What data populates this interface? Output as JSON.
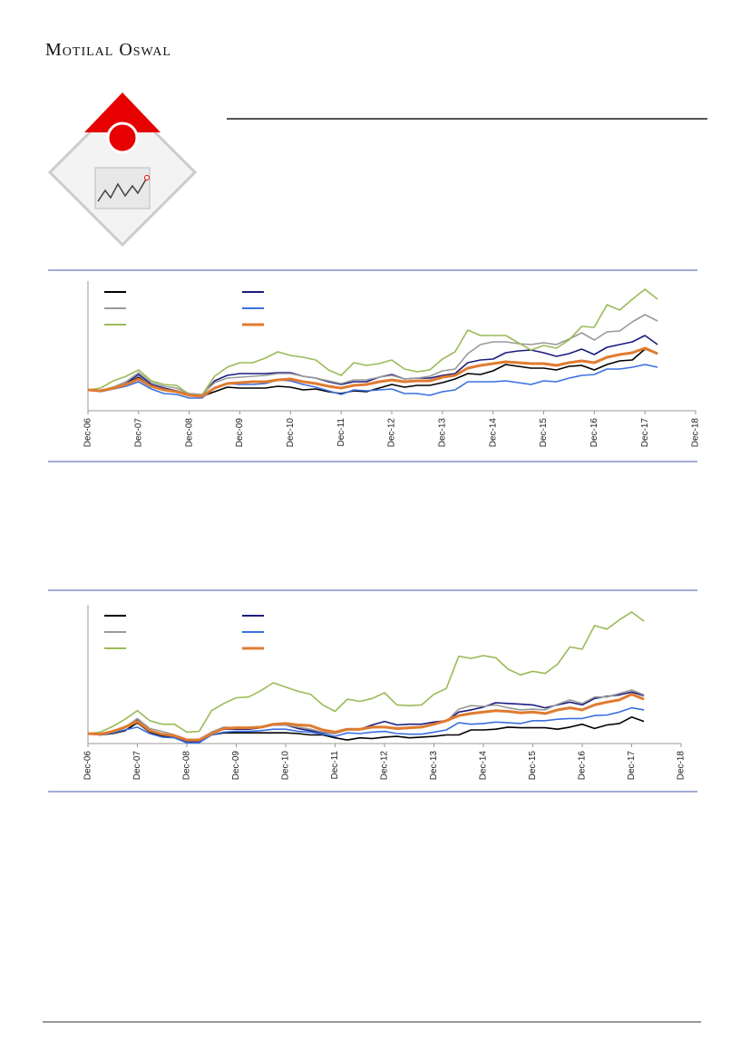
{
  "header": {
    "logo": "Motilal Oswal"
  },
  "chart_data": [
    {
      "type": "line",
      "x": [
        "Dec-06",
        "Mar-07",
        "Jun-07",
        "Sep-07",
        "Dec-07",
        "Mar-08",
        "Jun-08",
        "Sep-08",
        "Dec-08",
        "Mar-09",
        "Jun-09",
        "Sep-09",
        "Dec-09",
        "Mar-10",
        "Jun-10",
        "Sep-10",
        "Dec-10",
        "Mar-11",
        "Jun-11",
        "Sep-11",
        "Dec-11",
        "Mar-12",
        "Jun-12",
        "Sep-12",
        "Dec-12",
        "Mar-13",
        "Jun-13",
        "Sep-13",
        "Dec-13",
        "Mar-14",
        "Jun-14",
        "Sep-14",
        "Dec-14",
        "Mar-15",
        "Jun-15",
        "Sep-15",
        "Dec-15",
        "Mar-16",
        "Jun-16",
        "Sep-16",
        "Dec-16",
        "Mar-17",
        "Jun-17",
        "Sep-17",
        "Dec-17",
        "Mar-18"
      ],
      "xlim": [
        "Dec-06",
        "Dec-18"
      ],
      "xticks": [
        "Dec-06",
        "Dec-07",
        "Dec-08",
        "Dec-09",
        "Dec-10",
        "Dec-11",
        "Dec-12",
        "Dec-13",
        "Dec-14",
        "Dec-15",
        "Dec-16",
        "Dec-17",
        "Dec-18"
      ],
      "ylim": [
        54,
        340
      ],
      "series": [
        {
          "color": "#000000",
          "values": [
            100,
            98,
            104,
            112,
            128,
            108,
            100,
            98,
            88,
            86,
            96,
            106,
            104,
            104,
            104,
            108,
            106,
            100,
            102,
            96,
            92,
            98,
            96,
            104,
            112,
            106,
            110,
            110,
            116,
            124,
            136,
            134,
            142,
            156,
            152,
            148,
            148,
            144,
            152,
            154,
            144,
            156,
            164,
            166,
            190,
            180
          ]
        },
        {
          "color": "#1c1c80",
          "values": [
            100,
            98,
            106,
            114,
            134,
            112,
            104,
            98,
            90,
            88,
            120,
            132,
            136,
            136,
            136,
            138,
            138,
            130,
            126,
            118,
            112,
            118,
            118,
            128,
            134,
            124,
            126,
            126,
            132,
            136,
            160,
            166,
            168,
            182,
            186,
            188,
            182,
            174,
            180,
            190,
            178,
            194,
            200,
            206,
            220,
            200
          ]
        },
        {
          "color": "#9a9a9a",
          "values": [
            100,
            98,
            106,
            118,
            138,
            116,
            108,
            104,
            92,
            90,
            116,
            126,
            128,
            130,
            132,
            136,
            136,
            130,
            126,
            120,
            114,
            122,
            122,
            128,
            132,
            124,
            126,
            130,
            142,
            146,
            180,
            200,
            206,
            206,
            202,
            200,
            204,
            200,
            212,
            226,
            210,
            228,
            230,
            250,
            266,
            252
          ]
        },
        {
          "color": "#3b70e0",
          "values": [
            100,
            96,
            102,
            108,
            118,
            102,
            92,
            90,
            82,
            82,
            104,
            114,
            112,
            112,
            114,
            122,
            120,
            112,
            106,
            98,
            90,
            100,
            98,
            100,
            102,
            92,
            92,
            88,
            96,
            100,
            118,
            118,
            118,
            120,
            116,
            112,
            120,
            118,
            126,
            132,
            134,
            146,
            146,
            150,
            156,
            150
          ]
        },
        {
          "color": "#9bbb59",
          "values": [
            100,
            104,
            120,
            130,
            144,
            120,
            112,
            110,
            90,
            88,
            130,
            150,
            160,
            160,
            170,
            184,
            176,
            172,
            166,
            144,
            132,
            160,
            154,
            158,
            166,
            146,
            140,
            144,
            168,
            184,
            232,
            220,
            220,
            220,
            204,
            188,
            198,
            192,
            210,
            240,
            238,
            288,
            276,
            300,
            322,
            300
          ]
        },
        {
          "color": "#e07b30",
          "values": [
            100,
            98,
            104,
            112,
            124,
            108,
            100,
            96,
            88,
            86,
            104,
            114,
            116,
            118,
            118,
            122,
            124,
            118,
            114,
            108,
            104,
            110,
            112,
            118,
            122,
            118,
            120,
            120,
            128,
            132,
            148,
            154,
            158,
            162,
            160,
            158,
            158,
            154,
            160,
            164,
            160,
            172,
            178,
            182,
            192,
            180
          ]
        }
      ]
    },
    {
      "type": "line",
      "x": [
        "Dec-06",
        "Mar-07",
        "Jun-07",
        "Sep-07",
        "Dec-07",
        "Mar-08",
        "Jun-08",
        "Sep-08",
        "Dec-08",
        "Mar-09",
        "Jun-09",
        "Sep-09",
        "Dec-09",
        "Mar-10",
        "Jun-10",
        "Sep-10",
        "Dec-10",
        "Mar-11",
        "Jun-11",
        "Sep-11",
        "Dec-11",
        "Mar-12",
        "Jun-12",
        "Sep-12",
        "Dec-12",
        "Mar-13",
        "Jun-13",
        "Sep-13",
        "Dec-13",
        "Mar-14",
        "Jun-14",
        "Sep-14",
        "Dec-14",
        "Mar-15",
        "Jun-15",
        "Sep-15",
        "Dec-15",
        "Mar-16",
        "Jun-16",
        "Sep-16",
        "Dec-16",
        "Mar-17",
        "Jun-17",
        "Sep-17",
        "Dec-17",
        "Mar-18"
      ],
      "xlim": [
        "Dec-06",
        "Dec-18"
      ],
      "xticks": [
        "Dec-06",
        "Dec-07",
        "Dec-08",
        "Dec-09",
        "Dec-10",
        "Dec-11",
        "Dec-12",
        "Dec-13",
        "Dec-14",
        "Dec-15",
        "Dec-16",
        "Dec-17",
        "Dec-18"
      ],
      "ylim": [
        72,
        460
      ],
      "series": [
        {
          "color": "#000000",
          "values": [
            100,
            96,
            100,
            108,
            130,
            104,
            92,
            92,
            78,
            78,
            96,
            102,
            102,
            102,
            102,
            102,
            102,
            100,
            96,
            96,
            88,
            82,
            88,
            86,
            90,
            92,
            88,
            90,
            92,
            96,
            96,
            110,
            110,
            112,
            118,
            116,
            116,
            116,
            112,
            118,
            126,
            114,
            124,
            128,
            146,
            134
          ]
        },
        {
          "color": "#1c1c80",
          "values": [
            100,
            96,
            104,
            116,
            138,
            108,
            96,
            92,
            78,
            78,
            102,
            112,
            112,
            112,
            116,
            124,
            124,
            114,
            108,
            102,
            100,
            112,
            112,
            124,
            134,
            124,
            126,
            126,
            132,
            136,
            160,
            166,
            174,
            186,
            184,
            182,
            180,
            172,
            180,
            188,
            180,
            198,
            204,
            208,
            216,
            206
          ]
        },
        {
          "color": "#9a9a9a",
          "values": [
            100,
            96,
            104,
            118,
            142,
            114,
            106,
            96,
            84,
            84,
            104,
            118,
            116,
            116,
            118,
            126,
            124,
            118,
            112,
            104,
            100,
            110,
            110,
            116,
            118,
            112,
            114,
            118,
            128,
            134,
            168,
            178,
            176,
            180,
            172,
            166,
            168,
            166,
            182,
            194,
            184,
            202,
            202,
            212,
            222,
            208
          ]
        },
        {
          "color": "#3b70e0",
          "values": [
            100,
            96,
            102,
            110,
            118,
            100,
            90,
            88,
            74,
            74,
            96,
            104,
            106,
            106,
            108,
            112,
            112,
            106,
            104,
            98,
            92,
            102,
            100,
            104,
            106,
            100,
            98,
            98,
            104,
            110,
            130,
            126,
            128,
            132,
            130,
            128,
            136,
            136,
            140,
            142,
            142,
            150,
            152,
            160,
            172,
            166
          ]
        },
        {
          "color": "#9bbb59",
          "values": [
            100,
            104,
            120,
            140,
            164,
            136,
            126,
            126,
            104,
            106,
            164,
            184,
            200,
            202,
            220,
            242,
            230,
            218,
            210,
            180,
            162,
            196,
            190,
            198,
            214,
            180,
            178,
            180,
            210,
            226,
            316,
            310,
            318,
            312,
            280,
            264,
            274,
            268,
            294,
            342,
            336,
            402,
            392,
            418,
            440,
            414
          ]
        },
        {
          "color": "#e07b30",
          "values": [
            100,
            98,
            106,
            118,
            134,
            108,
            98,
            94,
            82,
            82,
            100,
            114,
            116,
            116,
            118,
            126,
            128,
            124,
            122,
            110,
            104,
            112,
            112,
            118,
            118,
            114,
            116,
            118,
            126,
            136,
            150,
            156,
            160,
            164,
            162,
            158,
            160,
            156,
            166,
            172,
            166,
            180,
            188,
            194,
            210,
            196
          ]
        }
      ]
    }
  ]
}
